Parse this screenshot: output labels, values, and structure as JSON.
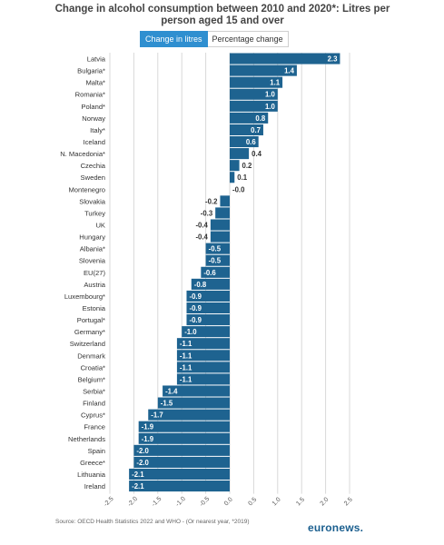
{
  "header": {
    "title_line1": "Change in alcohol consumption between 2010 and 2020*: Litres per",
    "title_line2": "person aged 15 and over"
  },
  "toggle": {
    "active_label": "Change in litres",
    "inactive_label": "Percentage change"
  },
  "footer": {
    "source": "Source: OECD Health Statistics 2022 and WHO - (Or nearest year, *2019)",
    "logo_text": "euronews",
    "logo_dot": "."
  },
  "colors": {
    "bar": "#1e6390",
    "grid": "#d9d9d9",
    "positive_label": "#333333",
    "negative_label": "#333333",
    "inside_label": "#ffffff"
  },
  "chart_data": {
    "type": "bar",
    "orientation": "horizontal",
    "categories": [
      "Latvia",
      "Bulgaria*",
      "Malta*",
      "Romania*",
      "Poland*",
      "Norway",
      "Italy*",
      "Iceland",
      "N. Macedonia*",
      "Czechia",
      "Sweden",
      "Montenegro",
      "Slovakia",
      "Turkey",
      "UK",
      "Hungary",
      "Albania*",
      "Slovenia",
      "EU(27)",
      "Austria",
      "Luxembourg*",
      "Estonia",
      "Portugal*",
      "Germany*",
      "Switzerland",
      "Denmark",
      "Croatia*",
      "Belgium*",
      "Serbia*",
      "Finland",
      "Cyprus*",
      "France",
      "Netherlands",
      "Spain",
      "Greece*",
      "Lithuania",
      "Ireland"
    ],
    "values": [
      2.3,
      1.4,
      1.1,
      1.0,
      1.0,
      0.8,
      0.7,
      0.6,
      0.4,
      0.2,
      0.1,
      -0.0,
      -0.2,
      -0.3,
      -0.4,
      -0.4,
      -0.5,
      -0.5,
      -0.6,
      -0.8,
      -0.9,
      -0.9,
      -0.9,
      -1.0,
      -1.1,
      -1.1,
      -1.1,
      -1.1,
      -1.4,
      -1.5,
      -1.7,
      -1.9,
      -1.9,
      -2.0,
      -2.0,
      -2.1,
      -2.1
    ],
    "labels": [
      "2.3",
      "1.4",
      "1.1",
      "1.0",
      "1.0",
      "0.8",
      "0.7",
      "0.6",
      "0.4",
      "0.2",
      "0.1",
      "-0.0",
      "-0.2",
      "-0.3",
      "-0.4",
      "-0.4",
      "-0.5",
      "-0.5",
      "-0.6",
      "-0.8",
      "-0.9",
      "-0.9",
      "-0.9",
      "-1.0",
      "-1.1",
      "-1.1",
      "-1.1",
      "-1.1",
      "-1.4",
      "-1.5",
      "-1.7",
      "-1.9",
      "-1.9",
      "-2.0",
      "-2.0",
      "-2.1",
      "-2.1"
    ],
    "xlim": [
      -2.5,
      2.5
    ],
    "ticks": [
      -2.5,
      -2.0,
      -1.5,
      -1.0,
      -0.5,
      0.0,
      0.5,
      1.0,
      1.5,
      2.0,
      2.5
    ],
    "tick_labels": [
      "-2.5",
      "-2.0",
      "-1.5",
      "-1.0",
      "-0.5",
      "0.0",
      "0.5",
      "1.0",
      "1.5",
      "2.0",
      "2.5"
    ],
    "title": "Change in alcohol consumption between 2010 and 2020*: Litres per person aged 15 and over",
    "xlabel": "",
    "ylabel": "",
    "grid": true,
    "legend": "none"
  }
}
